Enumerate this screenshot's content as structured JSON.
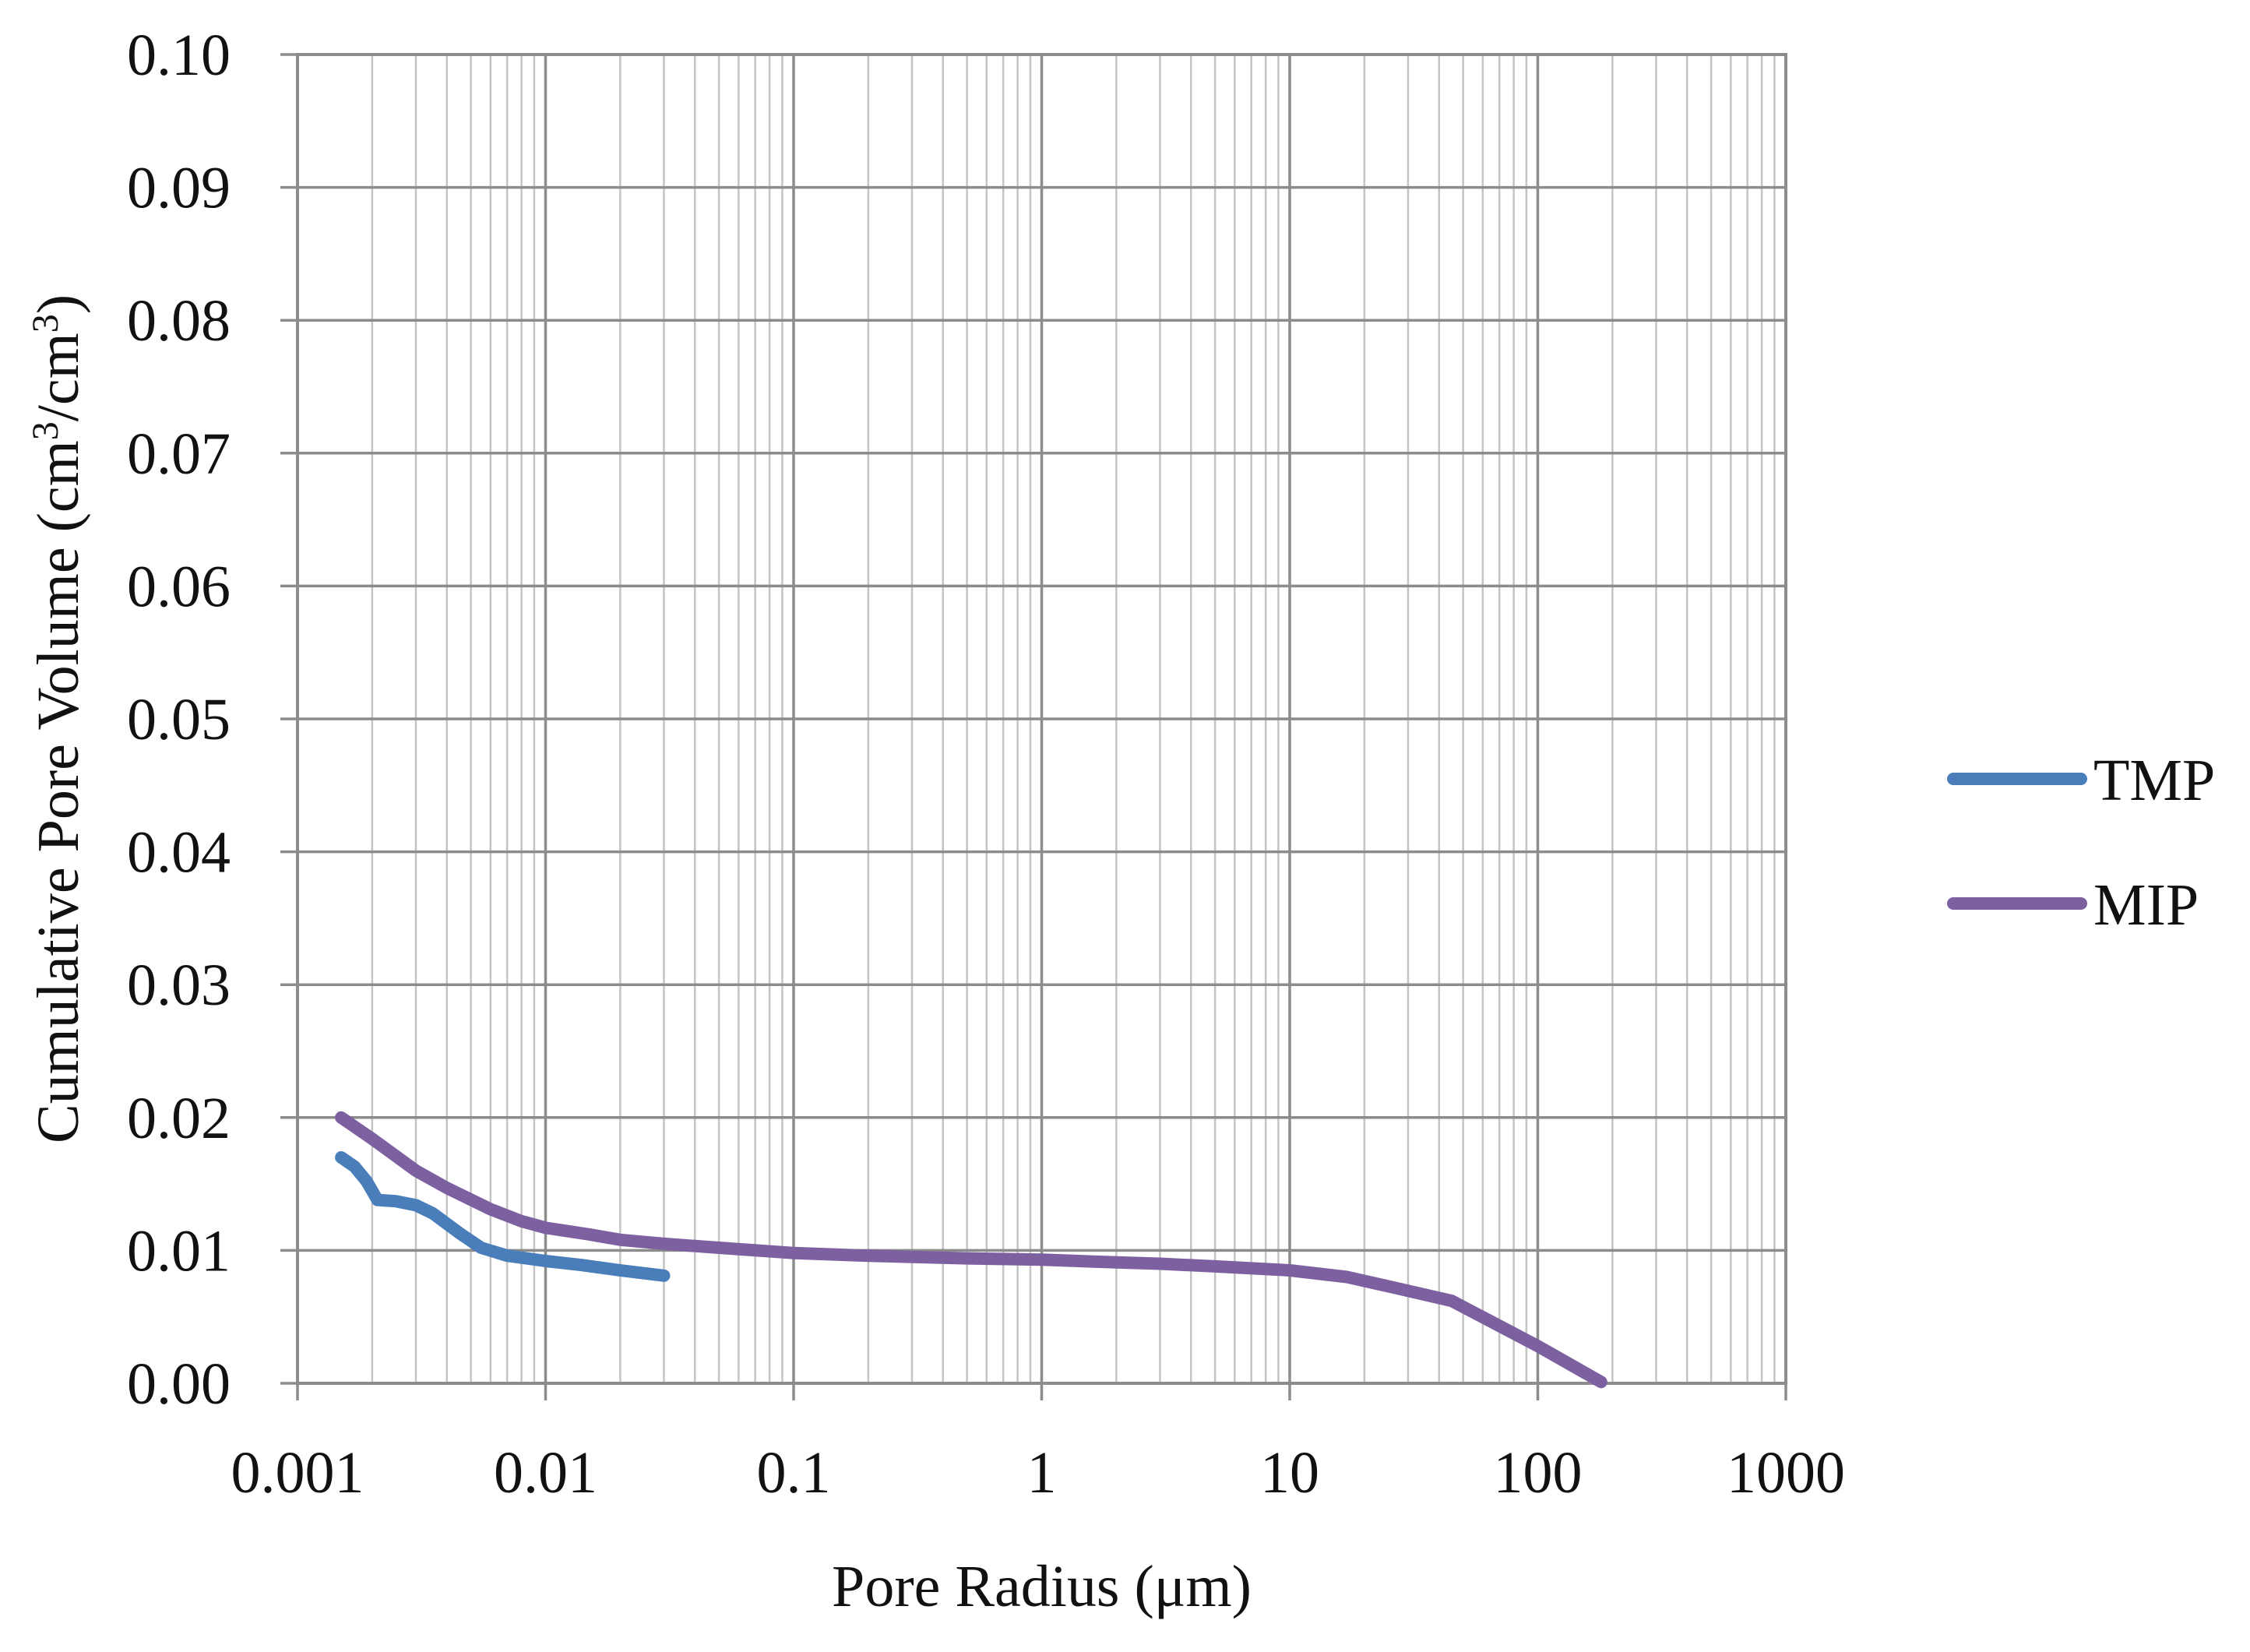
{
  "chart_data": {
    "type": "line",
    "title": "",
    "xlabel": "Pore Radius (μm)",
    "ylabel": {
      "prefix": "Cumulative Pore Volume (cm",
      "sup1": "3",
      "middle": "/cm",
      "sup2": "3",
      "suffix": ")"
    },
    "x_scale": "log",
    "xlim": [
      0.001,
      1000
    ],
    "ylim": [
      0,
      0.1
    ],
    "x_ticks": [
      "0.001",
      "0.01",
      "0.1",
      "1",
      "10",
      "100",
      "1000"
    ],
    "y_ticks": [
      "0.00",
      "0.01",
      "0.02",
      "0.03",
      "0.04",
      "0.05",
      "0.06",
      "0.07",
      "0.08",
      "0.09",
      "0.10"
    ],
    "grid": true,
    "legend_position": "right",
    "series": [
      {
        "name": "TMP",
        "color": "#4a7ebb",
        "points": [
          [
            0.0015,
            0.017
          ],
          [
            0.0017,
            0.0163
          ],
          [
            0.0019,
            0.0152
          ],
          [
            0.0021,
            0.0138
          ],
          [
            0.0025,
            0.0137
          ],
          [
            0.003,
            0.0134
          ],
          [
            0.0035,
            0.0128
          ],
          [
            0.0045,
            0.0113
          ],
          [
            0.0055,
            0.0102
          ],
          [
            0.007,
            0.0096
          ],
          [
            0.01,
            0.0092
          ],
          [
            0.014,
            0.0089
          ],
          [
            0.02,
            0.0085
          ],
          [
            0.03,
            0.0081
          ]
        ]
      },
      {
        "name": "MIP",
        "color": "#7d60a0",
        "points": [
          [
            0.0015,
            0.02
          ],
          [
            0.002,
            0.0184
          ],
          [
            0.003,
            0.016
          ],
          [
            0.004,
            0.0147
          ],
          [
            0.006,
            0.0131
          ],
          [
            0.008,
            0.0122
          ],
          [
            0.01,
            0.0117
          ],
          [
            0.015,
            0.0112
          ],
          [
            0.02,
            0.0108
          ],
          [
            0.03,
            0.0105
          ],
          [
            0.05,
            0.0102
          ],
          [
            0.1,
            0.0098
          ],
          [
            0.2,
            0.0096
          ],
          [
            0.5,
            0.0094
          ],
          [
            1,
            0.0093
          ],
          [
            2,
            0.0091
          ],
          [
            3,
            0.009
          ],
          [
            5,
            0.0088
          ],
          [
            10,
            0.0085
          ],
          [
            17,
            0.008
          ],
          [
            25,
            0.0073
          ],
          [
            45,
            0.0062
          ],
          [
            100,
            0.0028
          ],
          [
            180,
            0.0001
          ]
        ]
      }
    ]
  }
}
